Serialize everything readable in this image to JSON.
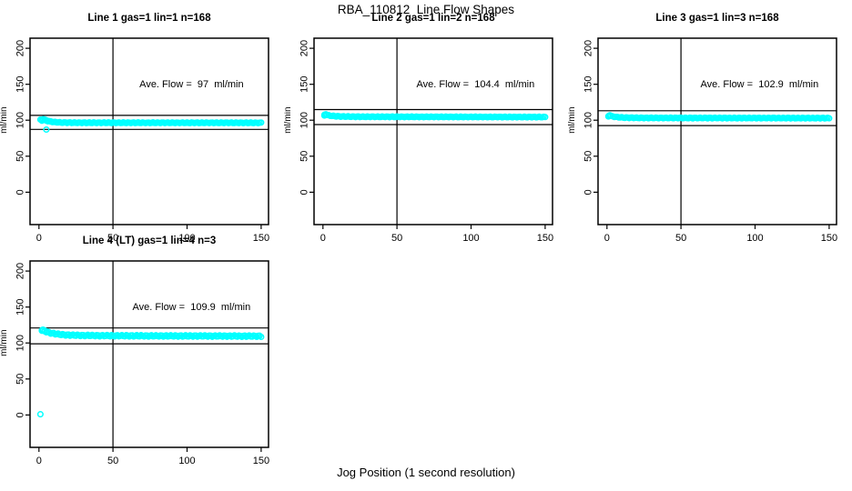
{
  "figure": {
    "title": "RBA_110812  Line Flow Shapes",
    "x_axis_title": "Jog Position (1 second resolution)"
  },
  "chart_data": {
    "type": "scatter",
    "title": "RBA_110812  Line Flow Shapes",
    "xlabel": "Jog Position (1 second resolution)",
    "ylabel": "ml/min",
    "x_ticks": [
      "0",
      "50",
      "100",
      "150"
    ],
    "y_ticks": [
      "0",
      "50",
      "100",
      "150",
      "200"
    ],
    "xlim": [
      -6,
      155
    ],
    "ylim": [
      -45,
      214
    ],
    "grid": false,
    "legend": "none",
    "point_color": "#00FFFF",
    "line_color": "#000000",
    "marker": "open-circle",
    "annotation_pos": {
      "x": 103,
      "y": 149
    },
    "panels": [
      {
        "title": "Line 1 gas=1 lin=1 n=168",
        "gas": 1,
        "lin": 1,
        "n": 168,
        "ave_flow": 97,
        "annotation": "Ave. Flow =  97  ml/min",
        "hline_upper": 106.7,
        "hline_lower": 87.3,
        "vline_x": 50,
        "jitter": 0.5,
        "band_profile": [
          [
            1,
            100.5
          ],
          [
            2,
            101
          ],
          [
            3,
            100.5
          ],
          [
            5,
            99.5
          ],
          [
            7,
            98.5
          ],
          [
            10,
            97.5
          ],
          [
            15,
            96.8
          ],
          [
            25,
            96.5
          ],
          [
            150,
            96.4
          ]
        ],
        "extra_points": [
          [
            2,
            99.3
          ],
          [
            3,
            101.6
          ],
          [
            4,
            100.9
          ],
          [
            5,
            99.9
          ],
          [
            6,
            99.1
          ],
          [
            8,
            98.2
          ]
        ],
        "outliers": [
          [
            5,
            87
          ]
        ]
      },
      {
        "title": "Line 2 gas=1 lin=2 n=168",
        "gas": 1,
        "lin": 2,
        "n": 168,
        "ave_flow": 104.4,
        "annotation": "Ave. Flow =  104.4  ml/min",
        "hline_upper": 114.8,
        "hline_lower": 94.0,
        "vline_x": 50,
        "jitter": 0.5,
        "band_profile": [
          [
            1,
            107.3
          ],
          [
            2,
            107.8
          ],
          [
            4,
            106.5
          ],
          [
            7,
            105.8
          ],
          [
            12,
            105.2
          ],
          [
            25,
            104.8
          ],
          [
            150,
            104.4
          ]
        ],
        "extra_points": [
          [
            1,
            106.5
          ],
          [
            2,
            108.2
          ],
          [
            3,
            107.2
          ]
        ],
        "outliers": []
      },
      {
        "title": "Line 3 gas=1 lin=3 n=168",
        "gas": 1,
        "lin": 3,
        "n": 168,
        "ave_flow": 102.9,
        "annotation": "Ave. Flow =  102.9  ml/min",
        "hline_upper": 113.2,
        "hline_lower": 92.6,
        "vline_x": 50,
        "jitter": 0.5,
        "band_profile": [
          [
            1,
            105.8
          ],
          [
            2,
            106.4
          ],
          [
            4,
            105.2
          ],
          [
            7,
            104.3
          ],
          [
            12,
            103.6
          ],
          [
            25,
            103.2
          ],
          [
            150,
            102.9
          ]
        ],
        "extra_points": [
          [
            1,
            105.2
          ],
          [
            2,
            106.8
          ]
        ],
        "outliers": []
      },
      {
        "title": "Line 4 (LT) gas=1 lin=4 n=3",
        "gas": 1,
        "lin": 4,
        "n": 3,
        "ave_flow": 109.9,
        "annotation": "Ave. Flow =  109.9  ml/min",
        "hline_upper": 120.9,
        "hline_lower": 98.9,
        "vline_x": 50,
        "jitter": 1.0,
        "band_profile": [
          [
            2,
            118
          ],
          [
            3,
            117.3
          ],
          [
            4,
            116.4
          ],
          [
            6,
            114.9
          ],
          [
            9,
            113.4
          ],
          [
            13,
            112.2
          ],
          [
            18,
            111.2
          ],
          [
            25,
            110.7
          ],
          [
            40,
            110.2
          ],
          [
            70,
            109.9
          ],
          [
            150,
            109.5
          ]
        ],
        "extra_points": [
          [
            2,
            117
          ],
          [
            2.5,
            118.4
          ],
          [
            3,
            118
          ],
          [
            4,
            117.2
          ]
        ],
        "outliers": [
          [
            1,
            1
          ]
        ]
      }
    ]
  }
}
